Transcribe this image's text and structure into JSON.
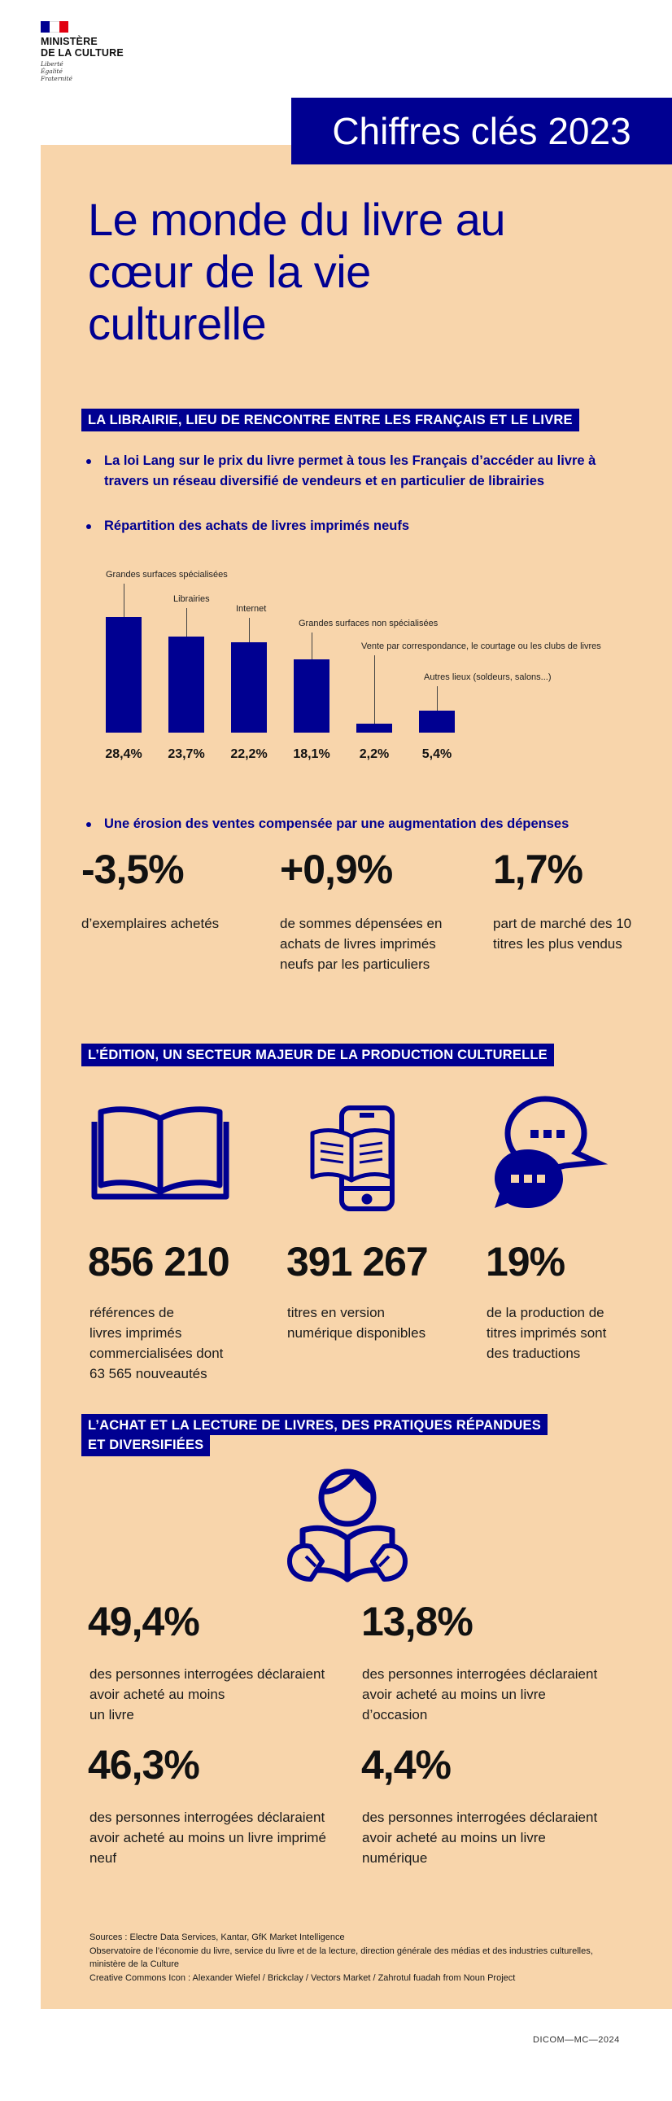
{
  "header": {
    "ministry": "MINISTÈRE\nDE LA CULTURE",
    "motto": "Liberté\nÉgalité\nFraternité",
    "banner": "Chiffres clés 2023"
  },
  "title": "Le monde du livre au cœur de la vie culturelle",
  "section1": {
    "tag": "LA LIBRAIRIE, LIEU DE RENCONTRE ENTRE LES FRANÇAIS ET LE LIVRE",
    "bullet1": "La loi Lang sur le prix du livre permet à tous les Français d’accéder au livre à travers un réseau diversifié de vendeurs et en particulier de librairies",
    "bullet2": "Répartition des achats de livres imprimés neufs",
    "bullet3": "Une érosion des ventes compensée par une augmentation des dépenses",
    "stats": [
      {
        "value": "-3,5%",
        "label": "d’exemplaires achetés"
      },
      {
        "value": "+0,9%",
        "label": "de sommes dépensées en achats de livres imprimés neufs par les particuliers"
      },
      {
        "value": "1,7%",
        "label": "part de marché des 10 titres les plus vendus"
      }
    ]
  },
  "chart_data": {
    "type": "bar",
    "categories": [
      "Grandes surfaces spécialisées",
      "Librairies",
      "Internet",
      "Grandes surfaces non spécialisées",
      "Vente par correspondance, le courtage ou les clubs de livres",
      "Autres lieux (soldeurs, salons...)"
    ],
    "values": [
      28.4,
      23.7,
      22.2,
      18.1,
      2.2,
      5.4
    ],
    "value_labels": [
      "28,4%",
      "23,7%",
      "22,2%",
      "18,1%",
      "2,2%",
      "5,4%"
    ],
    "bar_color": "#000091"
  },
  "section2": {
    "tag": "L’ÉDITION, UN SECTEUR MAJEUR DE LA PRODUCTION CULTURELLE",
    "icons": [
      "open-book-icon",
      "ebook-phone-icon",
      "speech-bubbles-icon"
    ],
    "stats": [
      {
        "value": "856 210",
        "label": "références de\nlivres imprimés\ncommercialisées dont\n63 565 nouveautés"
      },
      {
        "value": "391 267",
        "label": "titres en version\nnumérique disponibles"
      },
      {
        "value": "19%",
        "label": "de la production de\ntitres imprimés sont\ndes traductions"
      }
    ]
  },
  "section3": {
    "tag_line1": "L’ACHAT ET LA LECTURE DE LIVRES, DES PRATIQUES RÉPANDUES",
    "tag_line2": "ET DIVERSIFIÉES",
    "icon": "reader-icon",
    "stats": [
      {
        "value": "49,4%",
        "label": "des personnes interrogées déclaraient\navoir acheté au moins\nun livre"
      },
      {
        "value": "13,8%",
        "label": "des personnes interrogées déclaraient\navoir acheté au moins un livre\nd’occasion"
      },
      {
        "value": "46,3%",
        "label": "des personnes interrogées déclaraient\navoir acheté au moins un livre imprimé\nneuf"
      },
      {
        "value": "4,4%",
        "label": "des personnes interrogées déclaraient\navoir acheté au moins un livre\nnumérique"
      }
    ]
  },
  "sources": "Sources : Electre Data Services, Kantar, GfK Market Intelligence\nObservatoire de l’économie du livre, service du livre et de la lecture, direction générale des médias et des industries culturelles, ministère de la Culture\nCreative Commons Icon : Alexander Wiefel / Brickclay / Vectors Market / Zahrotul fuadah from Noun Project",
  "footer": "DICOM—MC—2024",
  "colors": {
    "navy": "#000091",
    "panel": "#f8d5ab",
    "flag_blue": "#000091",
    "flag_red": "#e1000f"
  }
}
